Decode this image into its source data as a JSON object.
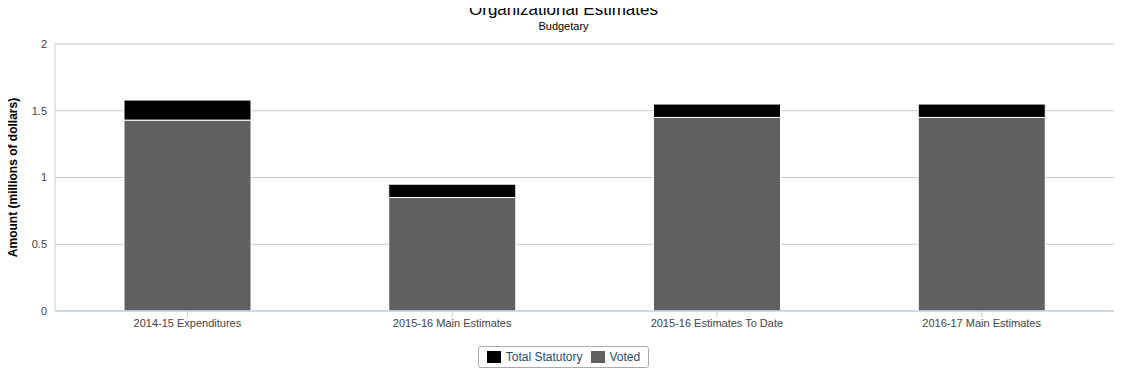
{
  "chart_data": {
    "type": "bar",
    "title": "Organizational Estimates",
    "subtitle": "Budgetary",
    "y_label": "Amount (millions of dollars)",
    "categories": [
      "2014-15 Expenditures",
      "2015-16 Main Estimates",
      "2015-16 Estimates To Date",
      "2016-17 Main Estimates"
    ],
    "series": [
      {
        "name": "Total Statutory",
        "color": "#000000",
        "values": [
          0.15,
          0.1,
          0.1,
          0.1
        ]
      },
      {
        "name": "Voted",
        "color": "#606060",
        "values": [
          1.43,
          0.85,
          1.45,
          1.45
        ]
      }
    ],
    "stacked": true,
    "ylim": [
      0,
      2
    ],
    "yticks": [
      0,
      0.5,
      1,
      1.5,
      2
    ],
    "grid": true,
    "legend": "bottom"
  }
}
